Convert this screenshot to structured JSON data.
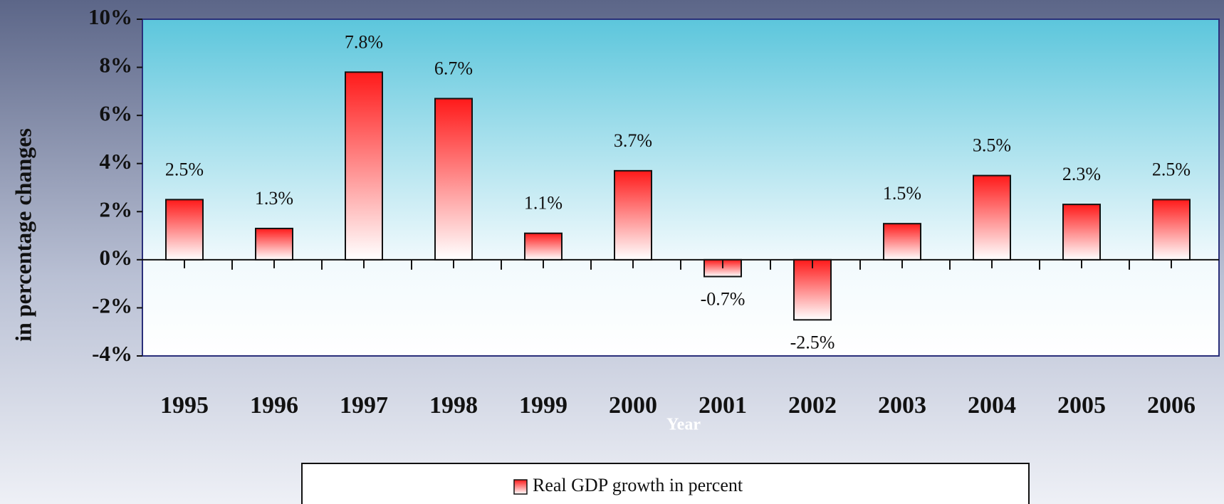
{
  "chart_data": {
    "type": "bar",
    "categories": [
      "1995",
      "1996",
      "1997",
      "1998",
      "1999",
      "2000",
      "2001",
      "2002",
      "2003",
      "2004",
      "2005",
      "2006"
    ],
    "series": [
      {
        "name": "Real GDP growth in percent",
        "color": "#ff1a1a",
        "values": [
          2.5,
          1.3,
          7.8,
          6.7,
          1.1,
          3.7,
          -0.7,
          -2.5,
          1.5,
          3.5,
          2.3,
          2.5
        ],
        "value_labels": [
          "2.5%",
          "1.3%",
          "7.8%",
          "6.7%",
          "1.1%",
          "3.7%",
          "-0.7%",
          "-2.5%",
          "1.5%",
          "3.5%",
          "2.3%",
          "2.5%"
        ]
      }
    ],
    "ylim": [
      -4,
      10
    ],
    "yticks": [
      {
        "value": -4,
        "label": "-4%"
      },
      {
        "value": -2,
        "label": "-2%"
      },
      {
        "value": 0,
        "label": "0%"
      },
      {
        "value": 2,
        "label": "2%"
      },
      {
        "value": 4,
        "label": "4%"
      },
      {
        "value": 6,
        "label": "6%"
      },
      {
        "value": 8,
        "label": "8%"
      },
      {
        "value": 10,
        "label": "10%"
      }
    ],
    "y_label": "in percentage changes",
    "x_label": "Year"
  }
}
